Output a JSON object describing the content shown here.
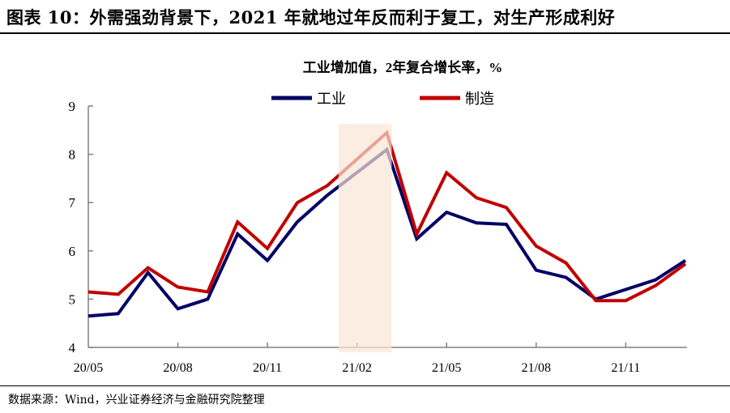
{
  "header": {
    "title": "图表 10：外需强劲背景下，2021 年就地过年反而利于复工，对生产形成利好"
  },
  "footer": {
    "source": "数据来源：Wind，兴业证券经济与金融研究院整理"
  },
  "colors": {
    "industry": "#000066",
    "manufacturing": "#c00000",
    "highlight": "#fbe5d6",
    "axis": "#808080"
  },
  "chart_data": {
    "type": "line",
    "title": "工业增加值，2年复合增长率，%",
    "xlabel": "",
    "ylabel": "",
    "ylim": [
      4,
      9
    ],
    "yticks": [
      4,
      5,
      6,
      7,
      8,
      9
    ],
    "categories": [
      "20/05",
      "20/06",
      "20/07",
      "20/08",
      "20/09",
      "20/10",
      "20/11",
      "20/12",
      "21/01",
      "21/02",
      "21/03",
      "21/04",
      "21/05",
      "21/06",
      "21/07",
      "21/08",
      "21/09",
      "21/10",
      "21/11",
      "21/12",
      "22/01"
    ],
    "xtick_labels": [
      "20/05",
      "20/08",
      "20/11",
      "21/02",
      "21/05",
      "21/08",
      "21/11"
    ],
    "highlight_range": [
      "21/01",
      "21/03"
    ],
    "legend": "top-center",
    "series": [
      {
        "name": "工业",
        "values": [
          4.65,
          4.7,
          5.55,
          4.8,
          5.0,
          6.35,
          5.8,
          6.6,
          7.15,
          null,
          8.1,
          6.25,
          6.8,
          6.58,
          6.55,
          5.6,
          5.45,
          5.0,
          5.2,
          5.4,
          5.8
        ]
      },
      {
        "name": "制造",
        "values": [
          5.15,
          5.1,
          5.65,
          5.25,
          5.15,
          6.6,
          6.05,
          7.0,
          7.35,
          null,
          8.45,
          6.35,
          7.62,
          7.1,
          6.9,
          6.1,
          5.75,
          4.97,
          4.97,
          5.28,
          5.73
        ]
      }
    ]
  }
}
